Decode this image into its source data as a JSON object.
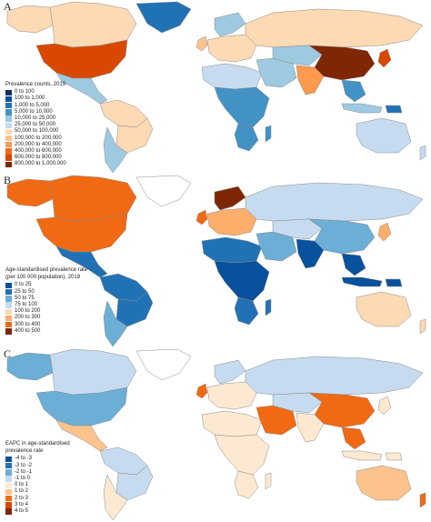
{
  "panels": [
    {
      "letter": "A",
      "legend_title": [
        "Prevalence counts, 2019"
      ],
      "legend": [
        {
          "label": "0 to 100",
          "color": "#08306b"
        },
        {
          "label": "100 to 1,000",
          "color": "#08519c"
        },
        {
          "label": "1,000 to 5,000",
          "color": "#2171b5"
        },
        {
          "label": "5,000 to 10,000",
          "color": "#4292c6"
        },
        {
          "label": "10,000 to 25,000",
          "color": "#9ecae1"
        },
        {
          "label": "25,000 to 50,000",
          "color": "#c6dbef"
        },
        {
          "label": "50,000 to 100,000",
          "color": "#fdd9b4"
        },
        {
          "label": "100,000 to 200,000",
          "color": "#fdc38d"
        },
        {
          "label": "200,000 to 400,000",
          "color": "#fd9a4e"
        },
        {
          "label": "400,000 to 600,000",
          "color": "#f16913"
        },
        {
          "label": "600,000 to 800,000",
          "color": "#d94801"
        },
        {
          "label": "800,000 to 1,000,000",
          "color": "#7f2704"
        }
      ],
      "regions": {
        "north_america": "#d94801",
        "canada": "#fdd9b4",
        "alaska": "#fdd9b4",
        "greenland": "#2171b5",
        "central_america": "#9ecae1",
        "south_america": "#fdd9b4",
        "brazil": "#fdd9b4",
        "argentina": "#9ecae1",
        "europe": "#fdd9b4",
        "scandinavia": "#9ecae1",
        "uk": "#fdc38d",
        "russia": "#fdd9b4",
        "africa": "#4292c6",
        "north_africa": "#c6dbef",
        "south_africa": "#4292c6",
        "middle_east": "#9ecae1",
        "central_asia": "#9ecae1",
        "india": "#fd9a4e",
        "china": "#7f2704",
        "japan": "#d94801",
        "southeast_asia": "#4292c6",
        "indonesia": "#9ecae1",
        "australia": "#c6dbef",
        "new_zealand": "#c6dbef",
        "papua": "#2171b5",
        "madagascar": "#4292c6"
      }
    },
    {
      "letter": "B",
      "legend_title": [
        "Age-standardised prevalence rate",
        "(per 100 000 population), 2019"
      ],
      "legend": [
        {
          "label": "0 to 25",
          "color": "#08519c"
        },
        {
          "label": "25 to 50",
          "color": "#2171b5"
        },
        {
          "label": "50 to 75",
          "color": "#6baed6"
        },
        {
          "label": "75 to 100",
          "color": "#c6dbef"
        },
        {
          "label": "100 to 200",
          "color": "#fdd9b4"
        },
        {
          "label": "200 to 300",
          "color": "#fdae6b"
        },
        {
          "label": "300 to 400",
          "color": "#f16913"
        },
        {
          "label": "400 to 500",
          "color": "#7f2704"
        }
      ],
      "regions": {
        "north_america": "#f16913",
        "canada": "#f16913",
        "alaska": "#f16913",
        "greenland": "#ffffff",
        "central_america": "#2171b5",
        "south_america": "#2171b5",
        "brazil": "#2171b5",
        "argentina": "#6baed6",
        "europe": "#fdae6b",
        "scandinavia": "#7f2704",
        "uk": "#f16913",
        "russia": "#c6dbef",
        "africa": "#08519c",
        "north_africa": "#2171b5",
        "south_africa": "#2171b5",
        "middle_east": "#6baed6",
        "central_asia": "#c6dbef",
        "india": "#08519c",
        "china": "#6baed6",
        "japan": "#fdae6b",
        "southeast_asia": "#08519c",
        "indonesia": "#08519c",
        "australia": "#fdd9b4",
        "new_zealand": "#fdd9b4",
        "papua": "#08519c",
        "madagascar": "#2171b5"
      }
    },
    {
      "letter": "C",
      "legend_title": [
        "EAPC in age-standardised",
        "prevalence rate"
      ],
      "legend": [
        {
          "label": "-4 to -3",
          "color": "#08519c"
        },
        {
          "label": "-3 to -2",
          "color": "#2171b5"
        },
        {
          "label": "-2 to -1",
          "color": "#6baed6"
        },
        {
          "label": "-1 to 0",
          "color": "#c6dbef"
        },
        {
          "label": "0 to 1",
          "color": "#fde9d1"
        },
        {
          "label": "1 to 2",
          "color": "#fdc38d"
        },
        {
          "label": "2 to 3",
          "color": "#f16913"
        },
        {
          "label": "3 to 4",
          "color": "#d94801"
        },
        {
          "label": "4 to 5",
          "color": "#7f2704"
        }
      ],
      "regions": {
        "north_america": "#6baed6",
        "canada": "#c6dbef",
        "alaska": "#6baed6",
        "greenland": "#ffffff",
        "central_america": "#fdc38d",
        "south_america": "#c6dbef",
        "brazil": "#c6dbef",
        "argentina": "#fde9d1",
        "europe": "#fde9d1",
        "scandinavia": "#c6dbef",
        "uk": "#f16913",
        "russia": "#c6dbef",
        "africa": "#fde9d1",
        "north_africa": "#fde9d1",
        "south_africa": "#fde9d1",
        "middle_east": "#f16913",
        "central_asia": "#c6dbef",
        "india": "#fde9d1",
        "china": "#f16913",
        "japan": "#fde9d1",
        "southeast_asia": "#f16913",
        "indonesia": "#fde9d1",
        "australia": "#fdc38d",
        "new_zealand": "#f16913",
        "papua": "#fde9d1",
        "madagascar": "#fde9d1"
      }
    }
  ]
}
